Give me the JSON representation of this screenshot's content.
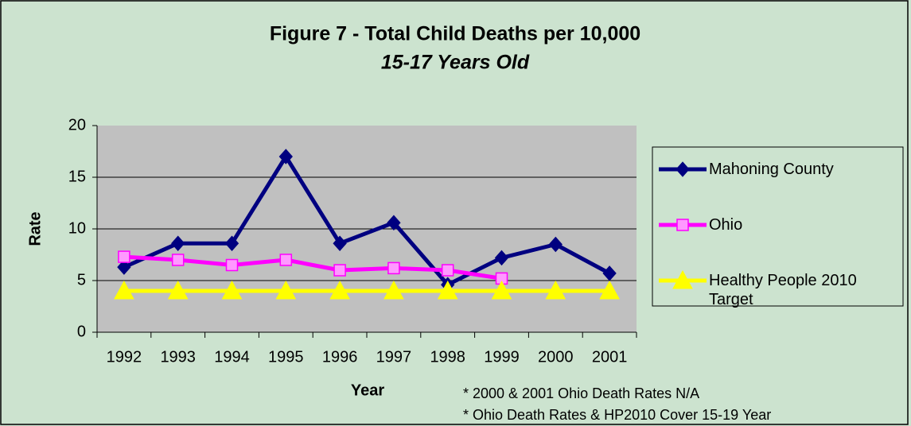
{
  "chart_data": {
    "type": "line",
    "title": "Figure 7 - Total Child Deaths per 10,000",
    "subtitle": "15-17 Years Old",
    "x_label": "Year",
    "y_label": "Rate",
    "categories": [
      "1992",
      "1993",
      "1994",
      "1995",
      "1996",
      "1997",
      "1998",
      "1999",
      "2000",
      "2001"
    ],
    "series": [
      {
        "name": "Mahoning County",
        "color": "#000080",
        "marker": "diamond",
        "values": [
          6.3,
          8.6,
          8.6,
          17.0,
          8.6,
          10.6,
          4.6,
          7.2,
          8.5,
          5.7
        ]
      },
      {
        "name": "Ohio",
        "color": "#ff00ff",
        "marker": "square",
        "values": [
          7.3,
          7.0,
          6.5,
          7.0,
          6.0,
          6.2,
          6.0,
          5.2,
          null,
          null
        ]
      },
      {
        "name": "Healthy People 2010 Target",
        "color": "#ffff00",
        "marker": "triangle",
        "values": [
          4.0,
          4.0,
          4.0,
          4.0,
          4.0,
          4.0,
          4.0,
          4.0,
          4.0,
          4.0
        ]
      }
    ],
    "ylim": [
      0,
      20
    ],
    "yticks": [
      0,
      5,
      10,
      15,
      20
    ],
    "grid": true,
    "legend": "right",
    "notes": [
      "* 2000 & 2001 Ohio Death Rates N/A",
      "* Ohio Death Rates & HP2010 Cover 15-19 Year"
    ]
  }
}
